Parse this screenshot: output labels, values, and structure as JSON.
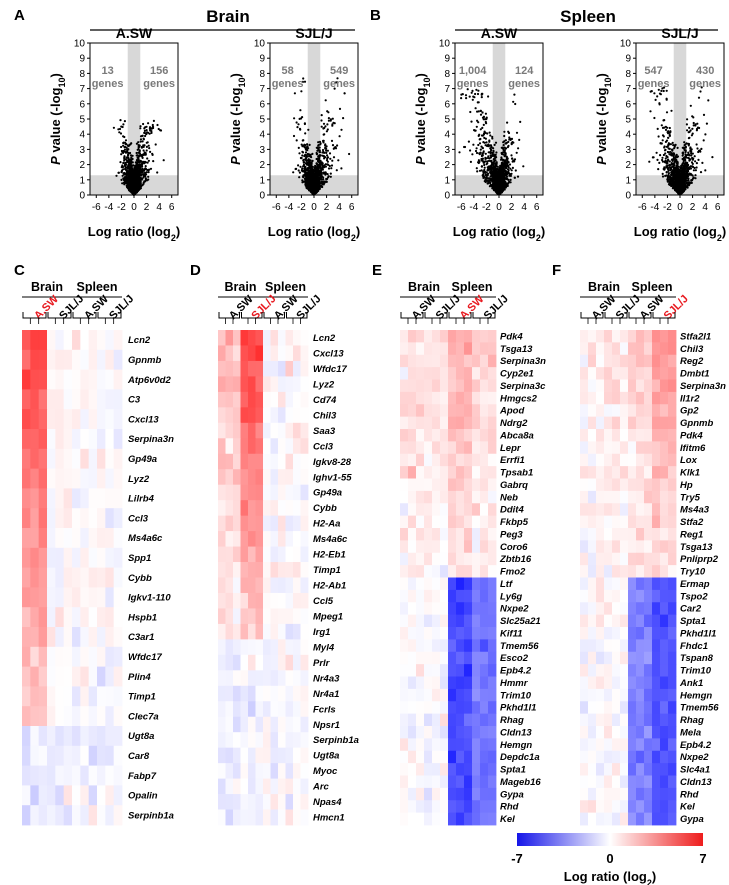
{
  "panels": {
    "a": "A",
    "b": "B",
    "c": "C",
    "d": "D",
    "e": "E",
    "f": "F"
  },
  "colors": {
    "red": "#ee1c1c",
    "blue": "#1515e8",
    "highlight": "#e8191f",
    "shade": "#d8d8d8",
    "count_text": "#7a7a7a"
  },
  "chart_data": [
    {
      "type": "scatter",
      "panel": "A",
      "group": "Brain",
      "strain": "A.SW",
      "title": "Brain",
      "xlabel": "Log ratio (log2)",
      "ylabel": "P value (-log10)",
      "xlim": [
        -7,
        7
      ],
      "ylim": [
        0,
        10
      ],
      "xticks": [
        "-6",
        "-4",
        "-2",
        "0",
        "2",
        "4",
        "6"
      ],
      "yticks": [
        "0",
        "1",
        "2",
        "3",
        "4",
        "5",
        "6",
        "7",
        "8",
        "9",
        "10"
      ],
      "left_count": "13",
      "left_unit": "genes",
      "right_count": "156",
      "right_unit": "genes",
      "spread": {
        "neg": 1.6,
        "pos": 2.2,
        "ymax": 4.2
      }
    },
    {
      "type": "scatter",
      "panel": "A",
      "group": "Brain",
      "strain": "SJL/J",
      "xlabel": "Log ratio (log2)",
      "ylabel": "P value (-log10)",
      "xlim": [
        -7,
        7
      ],
      "ylim": [
        0,
        10
      ],
      "xticks": [
        "-6",
        "-4",
        "-2",
        "0",
        "2",
        "4",
        "6"
      ],
      "yticks": [
        "0",
        "1",
        "2",
        "3",
        "4",
        "5",
        "6",
        "7",
        "8",
        "9",
        "10"
      ],
      "left_count": "58",
      "left_unit": "genes",
      "right_count": "549",
      "right_unit": "genes",
      "spread": {
        "neg": 1.9,
        "pos": 2.6,
        "ymax": 7.0
      }
    },
    {
      "type": "scatter",
      "panel": "B",
      "group": "Spleen",
      "strain": "A.SW",
      "title": "Spleen",
      "xlabel": "Log ratio (log2)",
      "ylabel": "P value (-log10)",
      "xlim": [
        -7,
        7
      ],
      "ylim": [
        0,
        10
      ],
      "xticks": [
        "-6",
        "-4",
        "-2",
        "0",
        "2",
        "4",
        "6"
      ],
      "yticks": [
        "0",
        "1",
        "2",
        "3",
        "4",
        "5",
        "6",
        "7",
        "8",
        "9",
        "10"
      ],
      "left_count": "1,004",
      "left_unit": "genes",
      "right_count": "124",
      "right_unit": "genes",
      "spread": {
        "neg": 3.6,
        "pos": 1.8,
        "ymax": 6.2
      }
    },
    {
      "type": "scatter",
      "panel": "B",
      "group": "Spleen",
      "strain": "SJL/J",
      "xlabel": "Log ratio (log2)",
      "ylabel": "P value (-log10)",
      "xlim": [
        -7,
        7
      ],
      "ylim": [
        0,
        10
      ],
      "xticks": [
        "-6",
        "-4",
        "-2",
        "0",
        "2",
        "4",
        "6"
      ],
      "yticks": [
        "0",
        "1",
        "2",
        "3",
        "4",
        "5",
        "6",
        "7",
        "8",
        "9",
        "10"
      ],
      "left_count": "547",
      "left_unit": "genes",
      "right_count": "430",
      "right_unit": "genes",
      "spread": {
        "neg": 2.8,
        "pos": 2.4,
        "ymax": 6.4
      }
    },
    {
      "type": "heatmap",
      "panel": "C",
      "headers": [
        "Brain",
        "Spleen"
      ],
      "strains": [
        "A.SW",
        "SJL/J",
        "A.SW",
        "SJL/J"
      ],
      "highlight": 0,
      "genes": [
        "Lcn2",
        "Gpnmb",
        "Atp6v0d2",
        "C3",
        "Cxcl13",
        "Serpina3n",
        "Gp49a",
        "Lyz2",
        "Lilrb4",
        "Ccl3",
        "Ms4a6c",
        "Spp1",
        "Cybb",
        "Igkv1-110",
        "Hspb1",
        "C3ar1",
        "Wfdc17",
        "Plin4",
        "Timp1",
        "Clec7a",
        "Ugt8a",
        "Car8",
        "Fabp7",
        "Opalin",
        "Serpinb1a"
      ],
      "profile": [
        5.5,
        0.2,
        0.0,
        -0.1
      ],
      "down_from": 20,
      "down_profile": [
        -0.7,
        -0.5,
        -0.3,
        -0.2
      ]
    },
    {
      "type": "heatmap",
      "panel": "D",
      "headers": [
        "Brain",
        "Spleen"
      ],
      "strains": [
        "A.SW",
        "SJL/J",
        "A.SW",
        "SJL/J"
      ],
      "highlight": 1,
      "genes": [
        "Lcn2",
        "Cxcl13",
        "Wfdc17",
        "Lyz2",
        "Cd74",
        "Chil3",
        "Saa3",
        "Ccl3",
        "Igkv8-28",
        "Ighv1-55",
        "Gp49a",
        "Cybb",
        "H2-Aa",
        "Ms4a6c",
        "H2-Eb1",
        "Timp1",
        "H2-Ab1",
        "Ccl5",
        "Mpeg1",
        "Irg1",
        "Myl4",
        "Prlr",
        "Nr4a3",
        "Nr4a1",
        "Fcrls",
        "Npsr1",
        "Serpinb1a",
        "Ugt8a",
        "Myoc",
        "Arc",
        "Npas4",
        "Hmcn1"
      ],
      "profile": [
        2.0,
        5.5,
        0.1,
        0.2
      ],
      "down_from": 20,
      "down_profile": [
        -0.6,
        -0.4,
        -0.2,
        -0.1
      ]
    },
    {
      "type": "heatmap",
      "panel": "E",
      "headers": [
        "Brain",
        "Spleen"
      ],
      "strains": [
        "A.SW",
        "SJL/J",
        "A.SW",
        "SJL/J"
      ],
      "highlight": 2,
      "genes": [
        "Pdk4",
        "Tsga13",
        "Serpina3n",
        "Cyp2e1",
        "Serpina3c",
        "Hmgcs2",
        "Apod",
        "Ndrg2",
        "Abca8a",
        "Lepr",
        "Errfi1",
        "Tpsab1",
        "Gabrq",
        "Neb",
        "Ddit4",
        "Fkbp5",
        "Peg3",
        "Coro6",
        "Zbtb16",
        "Fmo2",
        "Ltf",
        "Ly6g",
        "Nxpe2",
        "Slc25a21",
        "Kif11",
        "Tmem56",
        "Esco2",
        "Epb4.2",
        "Hmmr",
        "Trim10",
        "Pkhd1l1",
        "Rhag",
        "Cldn13",
        "Hemgn",
        "Depdc1a",
        "Spta1",
        "Mageb16",
        "Gypa",
        "Rhd",
        "Kel"
      ],
      "profile": [
        1.0,
        1.0,
        2.6,
        1.4
      ],
      "down_from": 20,
      "down_profile": [
        -0.1,
        -0.1,
        -5.5,
        -4.2
      ]
    },
    {
      "type": "heatmap",
      "panel": "F",
      "headers": [
        "Brain",
        "Spleen"
      ],
      "strains": [
        "A.SW",
        "SJL/J",
        "A.SW",
        "SJL/J"
      ],
      "highlight": 3,
      "genes": [
        "Stfa2l1",
        "Chil3",
        "Reg2",
        "Dmbt1",
        "Serpina3n",
        "Il1r2",
        "Gp2",
        "Gpnmb",
        "Pdk4",
        "Ifitm6",
        "Lox",
        "Klk1",
        "Hp",
        "Try5",
        "Ms4a3",
        "Stfa2",
        "Reg1",
        "Tsga13",
        "Pnliprp2",
        "Try10",
        "Ermap",
        "Tspo2",
        "Car2",
        "Spta1",
        "Pkhd1l1",
        "Fhdc1",
        "Tspan8",
        "Trim10",
        "Ank1",
        "Hemgn",
        "Tmem56",
        "Rhag",
        "Mela",
        "Epb4.2",
        "Nxpe2",
        "Slc4a1",
        "Cldn13",
        "Rhd",
        "Kel",
        "Gypa"
      ],
      "profile": [
        0.5,
        0.8,
        1.4,
        3.2
      ],
      "down_from": 20,
      "down_profile": [
        0.0,
        0.0,
        -3.8,
        -5.2
      ]
    }
  ],
  "colorbar": {
    "min": "-7",
    "mid": "0",
    "max": "7",
    "label": "Log ratio (log2)"
  }
}
